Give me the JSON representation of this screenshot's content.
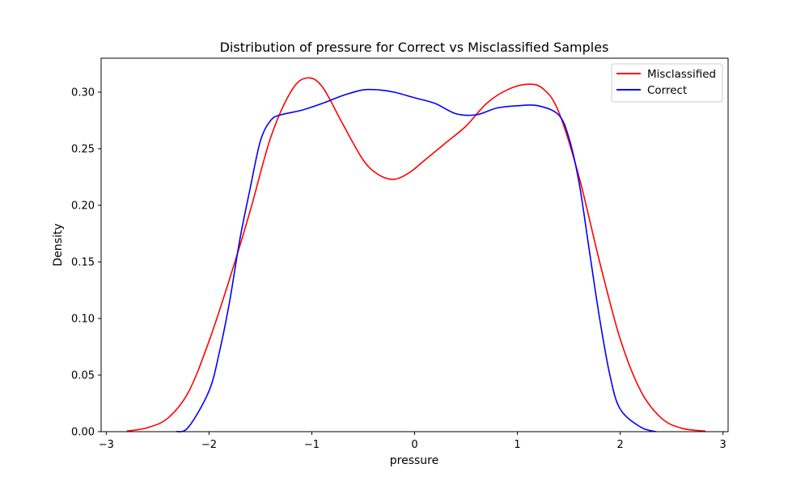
{
  "chart_data": {
    "type": "line",
    "title": "Distribution of pressure for Correct vs Misclassified Samples",
    "xlabel": "pressure",
    "ylabel": "Density",
    "xlim": [
      -3.05,
      3.05
    ],
    "ylim": [
      0,
      0.3
    ],
    "xticks": [
      -3,
      -2,
      -1,
      0,
      1,
      2,
      3
    ],
    "xtick_labels": [
      "−3",
      "−2",
      "−1",
      "0",
      "1",
      "2",
      "3"
    ],
    "yticks": [
      0.0,
      0.05,
      0.1,
      0.15,
      0.2,
      0.25,
      0.3
    ],
    "ytick_labels": [
      "0.00",
      "0.05",
      "0.10",
      "0.15",
      "0.20",
      "0.25",
      "0.30"
    ],
    "grid": false,
    "legend_position": "top-right",
    "series": [
      {
        "name": "Misclassified",
        "color": "#ff0000",
        "x": [
          -2.8,
          -2.6,
          -2.4,
          -2.2,
          -2.0,
          -1.8,
          -1.6,
          -1.4,
          -1.2,
          -1.05,
          -0.9,
          -0.7,
          -0.5,
          -0.35,
          -0.2,
          -0.05,
          0.1,
          0.3,
          0.5,
          0.7,
          0.9,
          1.1,
          1.25,
          1.4,
          1.6,
          1.8,
          2.0,
          2.2,
          2.4,
          2.6,
          2.83
        ],
        "y": [
          0.0005,
          0.0035,
          0.012,
          0.035,
          0.08,
          0.135,
          0.195,
          0.26,
          0.301,
          0.3125,
          0.305,
          0.272,
          0.24,
          0.227,
          0.223,
          0.229,
          0.24,
          0.255,
          0.27,
          0.29,
          0.302,
          0.307,
          0.303,
          0.283,
          0.225,
          0.15,
          0.082,
          0.036,
          0.012,
          0.003,
          0.0005
        ]
      },
      {
        "name": "Correct",
        "color": "#0000ff",
        "x": [
          -2.32,
          -2.2,
          -2.0,
          -1.9,
          -1.8,
          -1.7,
          -1.6,
          -1.5,
          -1.4,
          -1.3,
          -1.1,
          -0.9,
          -0.7,
          -0.5,
          -0.35,
          -0.2,
          0.0,
          0.2,
          0.4,
          0.6,
          0.8,
          1.0,
          1.2,
          1.4,
          1.5,
          1.6,
          1.7,
          1.8,
          1.9,
          2.0,
          2.2,
          2.35
        ],
        "y": [
          0.0,
          0.004,
          0.036,
          0.07,
          0.115,
          0.17,
          0.215,
          0.257,
          0.275,
          0.28,
          0.284,
          0.29,
          0.297,
          0.302,
          0.302,
          0.3,
          0.295,
          0.29,
          0.281,
          0.28,
          0.286,
          0.288,
          0.288,
          0.28,
          0.26,
          0.22,
          0.16,
          0.1,
          0.05,
          0.02,
          0.004,
          0.0
        ]
      }
    ]
  }
}
